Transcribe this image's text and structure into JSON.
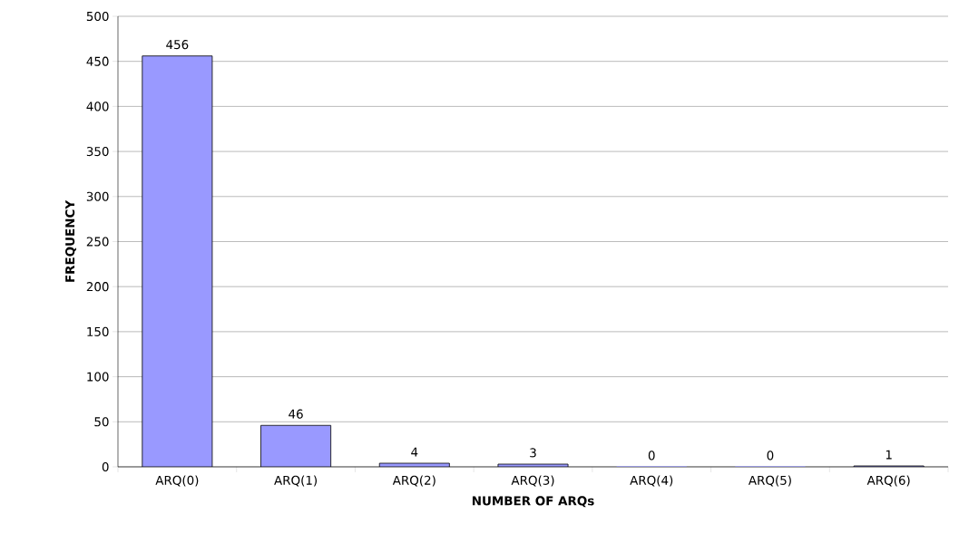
{
  "chart_data": {
    "type": "bar",
    "xlabel": "NUMBER OF ARQs",
    "ylabel": "FREQUENCY",
    "categories": [
      "ARQ(0)",
      "ARQ(1)",
      "ARQ(2)",
      "ARQ(3)",
      "ARQ(4)",
      "ARQ(5)",
      "ARQ(6)"
    ],
    "values": [
      456,
      46,
      4,
      3,
      0,
      0,
      1
    ],
    "color": "#9999ff",
    "ylim": [
      0,
      500
    ],
    "yticks": [
      0,
      50,
      100,
      150,
      200,
      250,
      300,
      350,
      400,
      450,
      500
    ],
    "grid": "y",
    "data_labels": true
  }
}
